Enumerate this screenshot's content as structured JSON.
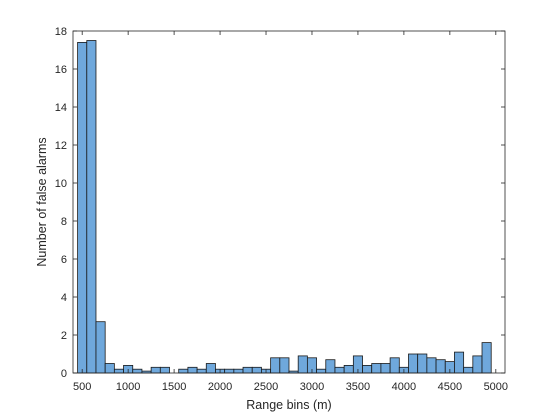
{
  "chart_data": {
    "type": "bar",
    "xlabel": "Range bins (m)",
    "ylabel": "Number of false alarms",
    "xlim": [
      400,
      5100
    ],
    "ylim": [
      0,
      18
    ],
    "xticks": [
      500,
      1000,
      1500,
      2000,
      2500,
      3000,
      3500,
      4000,
      4500,
      5000
    ],
    "yticks": [
      0,
      2,
      4,
      6,
      8,
      10,
      12,
      14,
      16,
      18
    ],
    "bin_width": 100,
    "bin_centers": [
      500,
      600,
      700,
      800,
      900,
      1000,
      1100,
      1200,
      1300,
      1400,
      1500,
      1600,
      1700,
      1800,
      1900,
      2000,
      2100,
      2200,
      2300,
      2400,
      2500,
      2600,
      2700,
      2800,
      2900,
      3000,
      3100,
      3200,
      3300,
      3400,
      3500,
      3600,
      3700,
      3800,
      3900,
      4000,
      4100,
      4200,
      4300,
      4400,
      4500,
      4600,
      4700,
      4800,
      4900,
      5000
    ],
    "values": [
      17.4,
      17.5,
      2.7,
      0.5,
      0.2,
      0.4,
      0.2,
      0.1,
      0.3,
      0.3,
      0.0,
      0.2,
      0.3,
      0.2,
      0.5,
      0.2,
      0.2,
      0.2,
      0.3,
      0.3,
      0.2,
      0.8,
      0.8,
      0.1,
      0.9,
      0.8,
      0.2,
      0.7,
      0.3,
      0.4,
      0.9,
      0.4,
      0.5,
      0.5,
      0.8,
      0.3,
      1.0,
      1.0,
      0.8,
      0.7,
      0.6,
      1.1,
      0.3,
      0.9,
      1.6,
      0.0
    ],
    "grid": false,
    "colors": {
      "bar_fill": "#6fa8dc",
      "bar_edge": "#1a1a1a",
      "axis": "#262626"
    }
  }
}
